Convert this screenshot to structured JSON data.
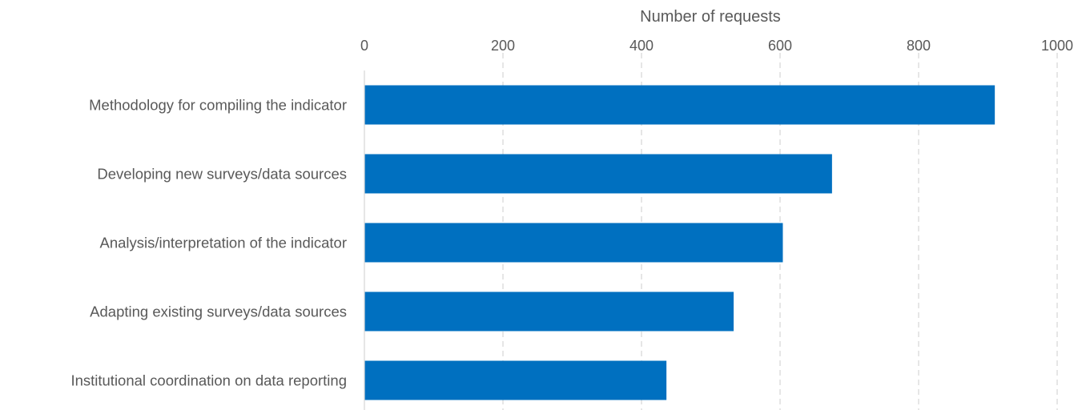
{
  "chart_data": {
    "type": "bar",
    "orientation": "horizontal",
    "xlabel": "Number of requests",
    "x_axis_position": "top",
    "xlim": [
      0,
      1000
    ],
    "xticks": [
      0,
      200,
      400,
      600,
      800,
      1000
    ],
    "grid": "vertical dashed",
    "categories": [
      "Methodology for compiling the indicator",
      "Developing new surveys/data sources",
      "Analysis/interpretation of the indicator",
      "Adapting existing surveys/data sources",
      "Institutional coordination on data reporting"
    ],
    "values": [
      910,
      675,
      604,
      533,
      436
    ],
    "bar_color": "#0070C0"
  }
}
